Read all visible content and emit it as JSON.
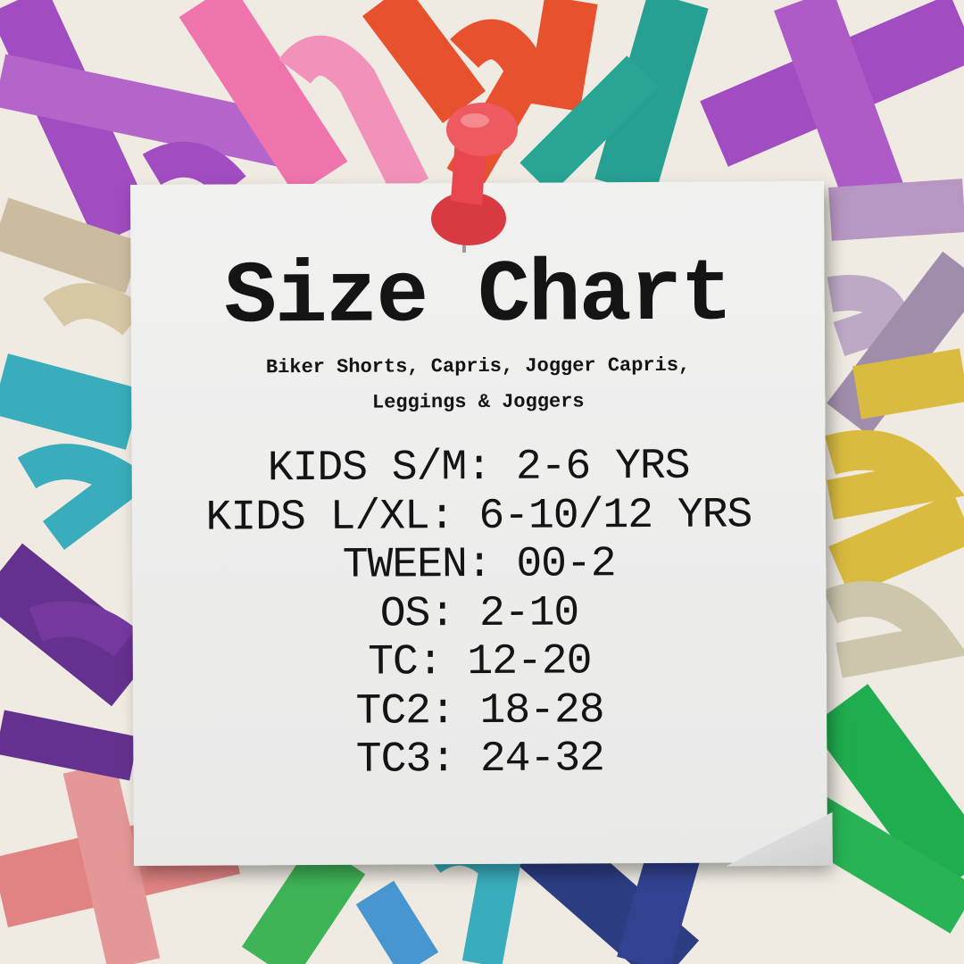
{
  "title": "Size Chart",
  "subtitle": [
    "Biker Shorts, Capris, Jogger Capris,",
    "Leggings & Joggers"
  ],
  "sizes": [
    "KIDS S/M: 2-6 YRS",
    "KIDS L/XL: 6-10/12 YRS",
    "TWEEN: 00-2",
    "OS: 2-10",
    "TC: 12-20",
    "TC2: 18-28",
    "TC3: 24-32"
  ],
  "colors": {
    "pin": "#e8474f",
    "ribbons": [
      "#9b3fbf",
      "#f06aa8",
      "#e8451f",
      "#169a8c",
      "#b48fc0",
      "#2aa8b8",
      "#5a2288",
      "#e07b7b",
      "#d8b732",
      "#2fb04c",
      "#1c2f7a",
      "#c9b99a",
      "#0fa843"
    ]
  }
}
